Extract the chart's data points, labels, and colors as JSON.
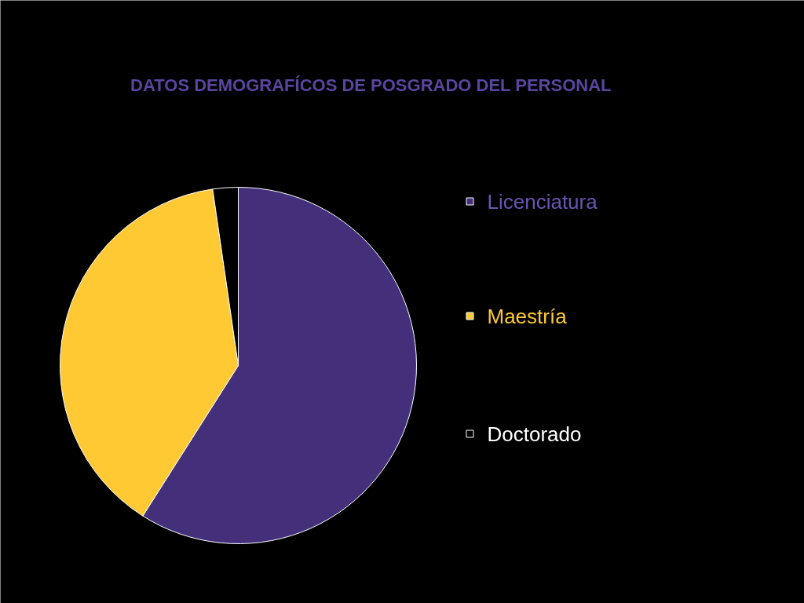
{
  "chart_data": {
    "type": "pie",
    "title": "DATOS DEMOGRAFÍCOS DE POSGRADO DEL PERSONAL",
    "categories": [
      "Licenciatura",
      "Maestría",
      "Doctorado"
    ],
    "values": [
      59,
      38.7,
      2.3
    ],
    "colors": [
      "#432f7a",
      "#ffc933",
      "#000000"
    ],
    "legend": "right"
  }
}
